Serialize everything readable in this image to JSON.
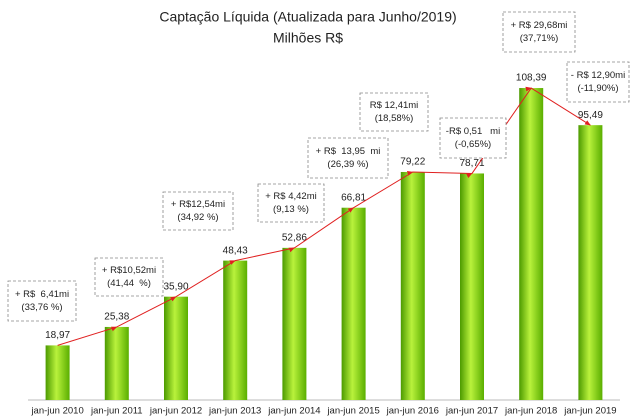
{
  "chart_data": {
    "type": "bar",
    "title": "Captação Líquida (Atualizada para Junho/2019)",
    "subtitle": "Milhões R$",
    "categories": [
      "jan-jun 2010",
      "jan-jun 2011",
      "jan-jun 2012",
      "jan-jun 2013",
      "jan-jun 2014",
      "jan-jun 2015",
      "jan-jun 2016",
      "jan-jun 2017",
      "jan-jun 2018",
      "jan-jun 2019"
    ],
    "values": [
      18.97,
      25.38,
      35.9,
      48.43,
      52.86,
      66.81,
      79.22,
      78.71,
      108.39,
      95.49
    ],
    "value_labels": [
      "18,97",
      "25,38",
      "35,90",
      "48,43",
      "52,86",
      "66,81",
      "79,22",
      "78,71",
      "108,39",
      "95,49"
    ],
    "color": "#7fd318",
    "line_color": "#e02020",
    "ylim": [
      0,
      110
    ],
    "annotations": [
      [
        "+ R$  6,41mi",
        "(33,76 %)"
      ],
      [
        "+ R$10,52mi",
        "(41,44  %)"
      ],
      [
        "+ R$12,54mi",
        "(34,92 %)"
      ],
      [
        "+ R$ 4,42mi",
        "(9,13 %)"
      ],
      [
        "+ R$  13,95  mi",
        "(26,39 %)"
      ],
      [
        "R$ 12,41mi",
        "(18,58%)"
      ],
      [
        "-R$ 0,51   mi",
        "(-0,65%)"
      ],
      [
        "+ R$ 29,68mi",
        "(37,71%)"
      ],
      [
        "- R$ 12,90mi",
        "(-11,90%)"
      ]
    ]
  }
}
